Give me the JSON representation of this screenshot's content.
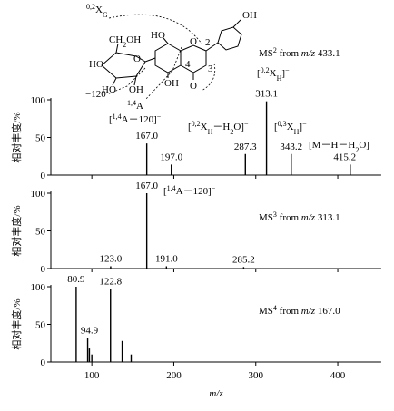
{
  "structure": {
    "labels": [
      "0,2",
      "X",
      "G",
      "OH",
      "HO",
      "O",
      "2",
      "3",
      "4",
      "O",
      "OH",
      "CH",
      "2",
      "OH",
      "O",
      "HO",
      "HO",
      "OH",
      "1,4",
      "A",
      "−120"
    ]
  },
  "chart_data": [
    {
      "type": "bar",
      "title": [
        "MS",
        "2",
        " from ",
        "m/z",
        " 433.1"
      ],
      "x": [
        167,
        197,
        287.3,
        313.1,
        343.2,
        415.2
      ],
      "values": [
        42,
        14,
        28,
        98,
        28,
        14
      ],
      "x_labels": [
        "167.0",
        "197.0",
        "287.3",
        "313.1",
        "343.2",
        "415.2"
      ],
      "annotations": [
        [
          "[",
          "0,2",
          "X",
          "H",
          "]",
          "−"
        ],
        [
          "[",
          "1,4",
          "A－120]",
          "−"
        ],
        [
          "[",
          "0,2",
          "X",
          "H",
          "－H",
          "2",
          "O]",
          "−"
        ],
        [
          "[",
          "0,3",
          "X",
          "H",
          "]",
          "−"
        ],
        [
          "[M－H－H",
          "2",
          "O]",
          "−"
        ]
      ],
      "ylabel": "相对丰度/%",
      "ylim": [
        0,
        100
      ],
      "yticks": [
        0,
        50,
        100
      ],
      "xlim": [
        50,
        453
      ],
      "xticks": [
        100,
        200,
        300,
        400
      ],
      "color": "#000000"
    },
    {
      "type": "bar",
      "title": [
        "MS",
        "3",
        " from ",
        "m/z",
        " 313.1"
      ],
      "x": [
        123,
        167,
        191,
        285.2
      ],
      "values": [
        3,
        100,
        3,
        2
      ],
      "x_labels": [
        "123.0",
        "167.0",
        "191.0",
        "285.2"
      ],
      "annotations": [
        [
          "[",
          "1,4",
          "A－120]",
          "−"
        ]
      ],
      "ylabel": "相对丰度/%",
      "ylim": [
        0,
        100
      ],
      "yticks": [
        0,
        50,
        100
      ],
      "xlim": [
        50,
        453
      ],
      "xticks": [
        100,
        200,
        300,
        400
      ],
      "color": "#000000"
    },
    {
      "type": "bar",
      "title": [
        "MS",
        "4",
        " from ",
        "m/z",
        " 167.0"
      ],
      "x": [
        80.9,
        94.9,
        97,
        100,
        122.8,
        137,
        148
      ],
      "values": [
        100,
        32,
        18,
        10,
        97,
        28,
        10
      ],
      "x_labels": [
        "80.9",
        "94.9",
        null,
        null,
        "122.8",
        null,
        null
      ],
      "ylabel": "相对丰度/%",
      "ylim": [
        0,
        100
      ],
      "yticks": [
        0,
        50,
        100
      ],
      "xlim": [
        50,
        453
      ],
      "xticks": [
        100,
        200,
        300,
        400
      ],
      "xlabel": "m/z",
      "color": "#000000"
    }
  ]
}
